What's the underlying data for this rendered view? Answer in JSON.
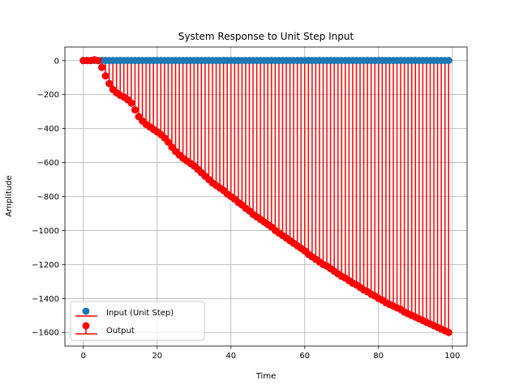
{
  "chart_data": {
    "type": "stem",
    "title": "System Response to Unit Step Input",
    "xlabel": "Time",
    "ylabel": "Amplitude",
    "xlim": [
      -5,
      104
    ],
    "ylim": [
      -1680,
      80
    ],
    "xticks": [
      0,
      20,
      40,
      60,
      80,
      100
    ],
    "yticks": [
      0,
      -200,
      -400,
      -600,
      -800,
      -1000,
      -1200,
      -1400,
      -1600
    ],
    "grid": true,
    "legend": {
      "placement": "bottom-left",
      "entries": [
        "Input (Unit Step)",
        "Output"
      ]
    },
    "x": {
      "start": 0,
      "end": 99,
      "step": 1
    },
    "series": [
      {
        "name": "Input (Unit Step)",
        "color": "#1f77b4",
        "constant": 1
      },
      {
        "name": "Output",
        "color": "#ff0000",
        "values": [
          0,
          0,
          0,
          5,
          0,
          -40,
          -90,
          -135,
          -170,
          -190,
          -205,
          -215,
          -230,
          -250,
          -290,
          -330,
          -355,
          -375,
          -390,
          -405,
          -420,
          -435,
          -455,
          -480,
          -510,
          -535,
          -555,
          -575,
          -590,
          -605,
          -620,
          -640,
          -660,
          -680,
          -700,
          -720,
          -735,
          -750,
          -765,
          -785,
          -800,
          -815,
          -835,
          -850,
          -870,
          -885,
          -905,
          -920,
          -935,
          -950,
          -965,
          -980,
          -1000,
          -1015,
          -1030,
          -1045,
          -1060,
          -1075,
          -1090,
          -1105,
          -1120,
          -1140,
          -1155,
          -1170,
          -1185,
          -1200,
          -1210,
          -1225,
          -1240,
          -1255,
          -1270,
          -1280,
          -1295,
          -1310,
          -1320,
          -1335,
          -1350,
          -1360,
          -1375,
          -1385,
          -1400,
          -1410,
          -1425,
          -1435,
          -1445,
          -1455,
          -1465,
          -1480,
          -1490,
          -1500,
          -1510,
          -1520,
          -1530,
          -1540,
          -1550,
          -1560,
          -1570,
          -1580,
          -1590,
          -1600
        ]
      }
    ]
  }
}
